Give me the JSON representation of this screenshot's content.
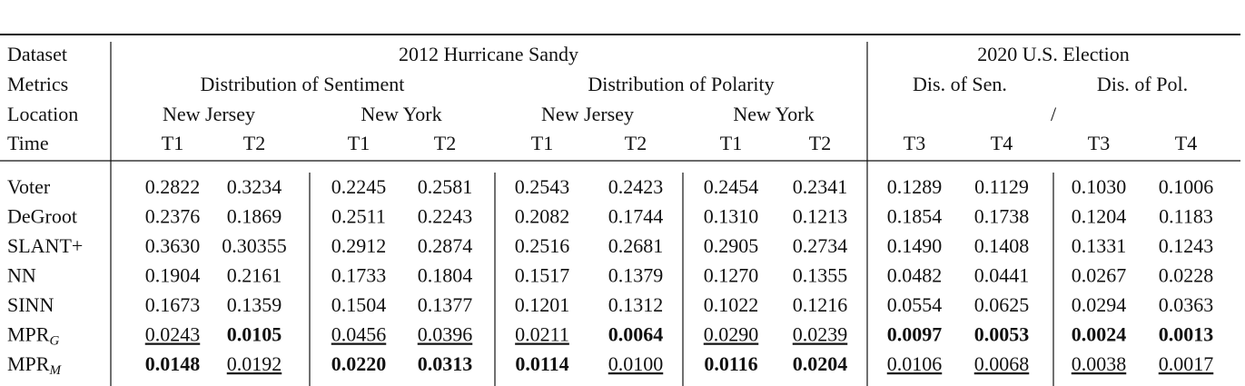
{
  "table": {
    "header": {
      "dataset": "Dataset",
      "metrics": "Metrics",
      "location": "Location",
      "time": "Time",
      "groups": [
        "2012 Hurricane Sandy",
        "2020 U.S. Election"
      ],
      "metrics_row": [
        "Distribution of Sentiment",
        "Distribution of Polarity",
        "Dis. of Sen.",
        "Dis. of Pol."
      ],
      "location_row": [
        "New Jersey",
        "New York",
        "New Jersey",
        "New York",
        "/"
      ],
      "time_row": [
        "T1",
        "T2",
        "T1",
        "T2",
        "T1",
        "T2",
        "T1",
        "T2",
        "T3",
        "T4",
        "T3",
        "T4"
      ]
    },
    "rows": [
      {
        "method": "Voter",
        "values": [
          "0.2822",
          "0.3234",
          "0.2245",
          "0.2581",
          "0.2543",
          "0.2423",
          "0.2454",
          "0.2341",
          "0.1289",
          "0.1129",
          "0.1030",
          "0.1006"
        ],
        "bold": [],
        "underline": []
      },
      {
        "method": "DeGroot",
        "values": [
          "0.2376",
          "0.1869",
          "0.2511",
          "0.2243",
          "0.2082",
          "0.1744",
          "0.1310",
          "0.1213",
          "0.1854",
          "0.1738",
          "0.1204",
          "0.1183"
        ],
        "bold": [],
        "underline": []
      },
      {
        "method": "SLANT+",
        "values": [
          "0.3630",
          "0.30355",
          "0.2912",
          "0.2874",
          "0.2516",
          "0.2681",
          "0.2905",
          "0.2734",
          "0.1490",
          "0.1408",
          "0.1331",
          "0.1243"
        ],
        "bold": [],
        "underline": []
      },
      {
        "method": "NN",
        "values": [
          "0.1904",
          "0.2161",
          "0.1733",
          "0.1804",
          "0.1517",
          "0.1379",
          "0.1270",
          "0.1355",
          "0.0482",
          "0.0441",
          "0.0267",
          "0.0228"
        ],
        "bold": [],
        "underline": []
      },
      {
        "method": "SINN",
        "values": [
          "0.1673",
          "0.1359",
          "0.1504",
          "0.1377",
          "0.1201",
          "0.1312",
          "0.1022",
          "0.1216",
          "0.0554",
          "0.0625",
          "0.0294",
          "0.0363"
        ],
        "bold": [],
        "underline": []
      },
      {
        "method": "MPR",
        "method_sub": "G",
        "values": [
          "0.0243",
          "0.0105",
          "0.0456",
          "0.0396",
          "0.0211",
          "0.0064",
          "0.0290",
          "0.0239",
          "0.0097",
          "0.0053",
          "0.0024",
          "0.0013"
        ],
        "bold": [
          1,
          5,
          8,
          9,
          10,
          11
        ],
        "underline": [
          0,
          2,
          3,
          4,
          6,
          7
        ]
      },
      {
        "method": "MPR",
        "method_sub": "M",
        "values": [
          "0.0148",
          "0.0192",
          "0.0220",
          "0.0313",
          "0.0114",
          "0.0100",
          "0.0116",
          "0.0204",
          "0.0106",
          "0.0068",
          "0.0038",
          "0.0017"
        ],
        "bold": [
          0,
          2,
          3,
          4,
          6,
          7
        ],
        "underline": [
          1,
          5,
          8,
          9,
          10,
          11
        ]
      }
    ]
  }
}
